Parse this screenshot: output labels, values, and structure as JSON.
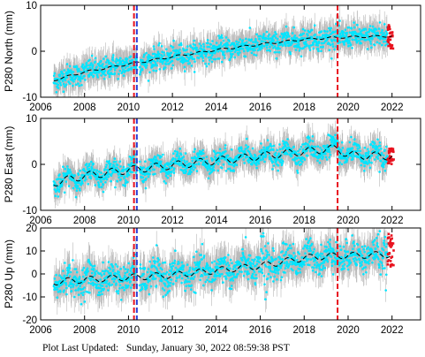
{
  "footer": {
    "label": "Plot Last Updated:",
    "date": "Sunday, January 30, 2022 08:59:38 PST"
  },
  "colors": {
    "errorbar": "#b8b8b8",
    "data": "#00e5ff",
    "trend": "#000000",
    "recent": "#e8121e",
    "offset_red": "#e8121e",
    "offset_blue": "#2c3fd6"
  },
  "chart_data": [
    {
      "type": "scatter",
      "ylabel": "P280 North (mm)",
      "xlim": [
        2006,
        2023.3
      ],
      "ylim": [
        -10,
        10
      ],
      "x_ticks": [
        2006,
        2008,
        2010,
        2012,
        2014,
        2016,
        2018,
        2020,
        2022
      ],
      "y_ticks": [
        -10,
        0,
        10
      ],
      "trend": {
        "x": [
          2006.6,
          2008,
          2010,
          2012,
          2014,
          2016,
          2018,
          2019.5,
          2020,
          2022
        ],
        "y": [
          -6.3,
          -4.5,
          -2.8,
          -1.2,
          0.3,
          1.5,
          2.6,
          3.0,
          3.1,
          3.3
        ]
      },
      "scatter_sd": 1.2,
      "errorbar_half": 2.5,
      "seasonal_amp": 0.3,
      "recent_points": {
        "x_range": [
          2021.8,
          2022.08
        ],
        "y_range": [
          0,
          6
        ]
      },
      "offsets": [
        {
          "x": 2010.25,
          "color": "red"
        },
        {
          "x": 2010.38,
          "color": "blue"
        },
        {
          "x": 2019.52,
          "color": "red"
        }
      ]
    },
    {
      "type": "scatter",
      "ylabel": "P280 East (mm)",
      "xlim": [
        2006,
        2023.3
      ],
      "ylim": [
        -10,
        10
      ],
      "x_ticks": [
        2006,
        2008,
        2010,
        2012,
        2014,
        2016,
        2018,
        2020,
        2022
      ],
      "y_ticks": [
        -10,
        0,
        10
      ],
      "trend": {
        "x": [
          2006.6,
          2008,
          2010,
          2012,
          2014,
          2016,
          2018,
          2019.5,
          2020,
          2022
        ],
        "y": [
          -4.0,
          -2.5,
          -1.2,
          -0.2,
          0.8,
          1.8,
          2.8,
          3.5,
          2.0,
          1.8
        ]
      },
      "scatter_sd": 1.1,
      "errorbar_half": 2.5,
      "seasonal_amp": 1.2,
      "recent_points": {
        "x_range": [
          2021.8,
          2022.08
        ],
        "y_range": [
          0,
          3.5
        ]
      },
      "offsets": [
        {
          "x": 2010.25,
          "color": "red"
        },
        {
          "x": 2010.38,
          "color": "blue"
        },
        {
          "x": 2019.52,
          "color": "red"
        }
      ]
    },
    {
      "type": "scatter",
      "ylabel": "P280 Up (mm)",
      "xlim": [
        2006,
        2023.3
      ],
      "ylim": [
        -20,
        20
      ],
      "x_ticks": [
        2006,
        2008,
        2010,
        2012,
        2014,
        2016,
        2018,
        2020,
        2022
      ],
      "x_tick_labels": [
        "2006",
        "2008",
        "2010",
        "2012",
        "2014",
        "2016",
        "2018",
        "2020",
        "2022"
      ],
      "y_ticks": [
        -20,
        -10,
        0,
        10,
        20
      ],
      "trend": {
        "x": [
          2006.6,
          2008,
          2010,
          2012,
          2014,
          2016,
          2018,
          2019.5,
          2020,
          2022
        ],
        "y": [
          -3.5,
          -2.5,
          -1.5,
          -0.5,
          1.5,
          3.5,
          7.0,
          8.0,
          8.0,
          8.5
        ]
      },
      "scatter_sd": 3.2,
      "errorbar_half": 6,
      "seasonal_amp": 2.0,
      "recent_points": {
        "x_range": [
          2021.8,
          2022.08
        ],
        "y_range": [
          3,
          18
        ]
      },
      "offsets": [
        {
          "x": 2010.25,
          "color": "red"
        },
        {
          "x": 2010.38,
          "color": "blue"
        },
        {
          "x": 2019.52,
          "color": "red"
        }
      ]
    }
  ]
}
